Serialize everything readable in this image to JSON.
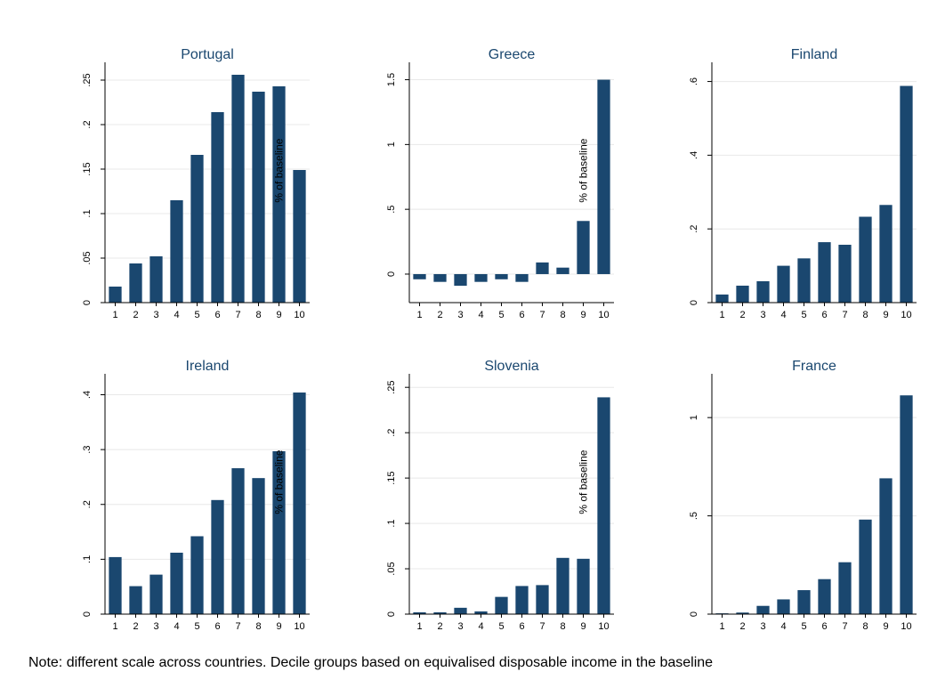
{
  "note": "Note: different scale across countries. Decile groups based on equivalised disposable income in the baseline",
  "colors": {
    "bar": "#1a476f",
    "title": "#1a476f",
    "grid": "#e8e8e8"
  },
  "chart_data": [
    {
      "type": "bar",
      "title": "Portugal",
      "ylabel": "% of baseline",
      "categories": [
        "1",
        "2",
        "3",
        "4",
        "5",
        "6",
        "7",
        "8",
        "9",
        "10"
      ],
      "values": [
        0.018,
        0.044,
        0.052,
        0.115,
        0.166,
        0.214,
        0.256,
        0.237,
        0.243,
        0.149
      ],
      "ylim": [
        0,
        0.265
      ],
      "yticks": [
        0,
        0.05,
        0.1,
        0.15,
        0.2,
        0.25
      ],
      "ytick_labels": [
        "0",
        ".05",
        ".1",
        ".15",
        ".2",
        ".25"
      ],
      "grid": true
    },
    {
      "type": "bar",
      "title": "Greece",
      "ylabel": "% of baseline",
      "categories": [
        "1",
        "2",
        "3",
        "4",
        "5",
        "6",
        "7",
        "8",
        "9",
        "10"
      ],
      "values": [
        -0.04,
        -0.06,
        -0.09,
        -0.06,
        -0.04,
        -0.06,
        0.09,
        0.05,
        0.41,
        1.5
      ],
      "ylim": [
        -0.22,
        1.6
      ],
      "yticks": [
        0,
        0.5,
        1,
        1.5
      ],
      "ytick_labels": [
        "0",
        ".5",
        "1",
        "1.5"
      ],
      "grid": true
    },
    {
      "type": "bar",
      "title": "Finland",
      "categories": [
        "1",
        "2",
        "3",
        "4",
        "5",
        "6",
        "7",
        "8",
        "9",
        "10"
      ],
      "values": [
        0.022,
        0.046,
        0.058,
        0.1,
        0.12,
        0.164,
        0.157,
        0.233,
        0.265,
        0.588
      ],
      "ylim": [
        0,
        0.64
      ],
      "yticks": [
        0,
        0.2,
        0.4,
        0.6
      ],
      "ytick_labels": [
        "0",
        ".2",
        ".4",
        ".6"
      ],
      "grid": true
    },
    {
      "type": "bar",
      "title": "Ireland",
      "ylabel": "% of baseline",
      "categories": [
        "1",
        "2",
        "3",
        "4",
        "5",
        "6",
        "7",
        "8",
        "9",
        "10"
      ],
      "values": [
        0.104,
        0.051,
        0.072,
        0.112,
        0.142,
        0.208,
        0.266,
        0.248,
        0.297,
        0.404
      ],
      "ylim": [
        0,
        0.43
      ],
      "yticks": [
        0,
        0.1,
        0.2,
        0.3,
        0.4
      ],
      "ytick_labels": [
        "0",
        ".1",
        ".2",
        ".3",
        ".4"
      ],
      "grid": true
    },
    {
      "type": "bar",
      "title": "Slovenia",
      "ylabel": "% of baseline",
      "categories": [
        "1",
        "2",
        "3",
        "4",
        "5",
        "6",
        "7",
        "8",
        "9",
        "10"
      ],
      "values": [
        0.002,
        0.002,
        0.007,
        0.003,
        0.019,
        0.031,
        0.032,
        0.062,
        0.061,
        0.239
      ],
      "ylim": [
        0,
        0.26
      ],
      "yticks": [
        0,
        0.05,
        0.1,
        0.15,
        0.2,
        0.25
      ],
      "ytick_labels": [
        "0",
        ".05",
        ".1",
        ".15",
        ".2",
        ".25"
      ],
      "grid": true
    },
    {
      "type": "bar",
      "title": "France",
      "categories": [
        "1",
        "2",
        "3",
        "4",
        "5",
        "6",
        "7",
        "8",
        "9",
        "10"
      ],
      "values": [
        0.004,
        0.008,
        0.042,
        0.075,
        0.122,
        0.178,
        0.264,
        0.481,
        0.691,
        1.113
      ],
      "ylim": [
        0,
        1.2
      ],
      "yticks": [
        0,
        0.5,
        1
      ],
      "ytick_labels": [
        "0",
        ".5",
        "1"
      ],
      "grid": true
    }
  ]
}
